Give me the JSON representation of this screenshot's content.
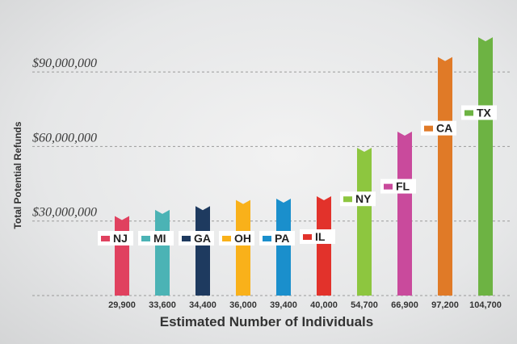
{
  "chart_data": {
    "type": "bar",
    "title": "",
    "xlabel": "Estimated Number of Individuals",
    "ylabel": "Total Potential Refunds",
    "ylim": [
      0,
      105000000
    ],
    "yticks": [
      30000000,
      60000000,
      90000000
    ],
    "ytick_labels": [
      "$30,000,000",
      "$60,000,000",
      "$90,000,000"
    ],
    "grid": true,
    "bars": [
      {
        "state": "NJ",
        "individuals": "29,900",
        "value": 32000000,
        "color": "#e0415f"
      },
      {
        "state": "MI",
        "individuals": "33,600",
        "value": 34500000,
        "color": "#4bb3b5"
      },
      {
        "state": "GA",
        "individuals": "34,400",
        "value": 36000000,
        "color": "#1e3a5f"
      },
      {
        "state": "OH",
        "individuals": "36,000",
        "value": 38500000,
        "color": "#f9b11a"
      },
      {
        "state": "PA",
        "individuals": "39,400",
        "value": 39000000,
        "color": "#1a8fcc"
      },
      {
        "state": "IL",
        "individuals": "40,000",
        "value": 40000000,
        "color": "#e2322b"
      },
      {
        "state": "NY",
        "individuals": "54,700",
        "value": 59500000,
        "color": "#8dc63f"
      },
      {
        "state": "FL",
        "individuals": "66,900",
        "value": 66000000,
        "color": "#c94a9c"
      },
      {
        "state": "CA",
        "individuals": "97,200",
        "value": 96000000,
        "color": "#e07a27"
      },
      {
        "state": "TX",
        "individuals": "104,700",
        "value": 104000000,
        "color": "#6db343"
      }
    ]
  }
}
